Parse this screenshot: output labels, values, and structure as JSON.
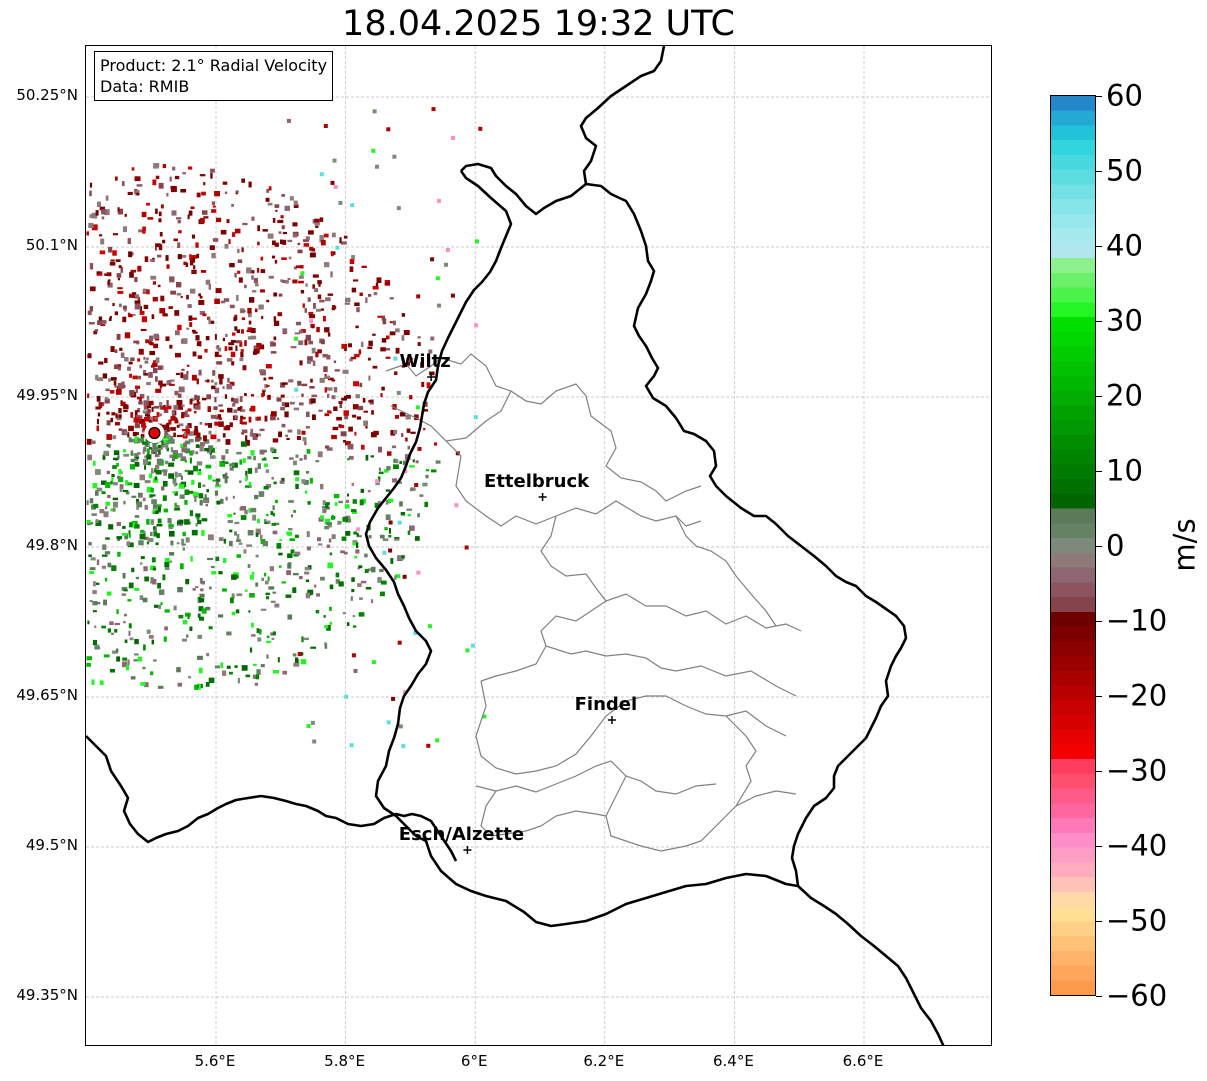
{
  "title": "18.04.2025 19:32 UTC",
  "info": {
    "product": "Product: 2.1° Radial Velocity",
    "data": "Data: RMIB"
  },
  "axes": {
    "lat_ticks": [
      "50.25°N",
      "50.1°N",
      "49.95°N",
      "49.8°N",
      "49.65°N",
      "49.5°N",
      "49.35°N"
    ],
    "lon_ticks": [
      "5.6°E",
      "5.8°E",
      "6°E",
      "6.2°E",
      "6.4°E",
      "6.6°E"
    ]
  },
  "cities": [
    {
      "name": "Wiltz",
      "lat": 49.97,
      "lon": 5.932
    },
    {
      "name": "Ettelbruck",
      "lat": 49.85,
      "lon": 6.104
    },
    {
      "name": "Findel",
      "lat": 49.627,
      "lon": 6.211
    },
    {
      "name": "Esch/Alzette",
      "lat": 49.497,
      "lon": 5.988
    }
  ],
  "radar": {
    "name": "",
    "lat": 49.914,
    "lon": 5.505
  },
  "colorbar": {
    "unit": "m/s",
    "min": -60,
    "max": 60,
    "ticks": [
      "60",
      "50",
      "40",
      "30",
      "20",
      "10",
      "0",
      "−10",
      "−20",
      "−30",
      "−40",
      "−50",
      "−60"
    ],
    "colors": [
      "#ff9a4a",
      "#ffa55c",
      "#ffb46a",
      "#ffc277",
      "#ffd087",
      "#ffe096",
      "#ffd9a8",
      "#ffc3b6",
      "#ffadbe",
      "#ff9ec4",
      "#ff8ec9",
      "#ff79b8",
      "#ff669f",
      "#ff5a87",
      "#ff4f6f",
      "#ff3e5f",
      "#f50000",
      "#e60000",
      "#d70000",
      "#c80000",
      "#b90000",
      "#aa0000",
      "#9b0000",
      "#8c0000",
      "#7d0000",
      "#6e0000",
      "#85434b",
      "#8c545e",
      "#8d6672",
      "#8d7a79",
      "#7b8a7a",
      "#668266",
      "#5a7a5a",
      "#006400",
      "#007000",
      "#007a00",
      "#008400",
      "#008e00",
      "#009800",
      "#00a200",
      "#00ad00",
      "#00b700",
      "#00c200",
      "#00cc00",
      "#00d600",
      "#00e000",
      "#24f524",
      "#4af54a",
      "#6af06a",
      "#8cf08c",
      "#b0e6ee",
      "#a6eaf0",
      "#96e8ec",
      "#86e5e9",
      "#72e2e6",
      "#5cdde2",
      "#48d9df",
      "#30d6dc",
      "#22c2d8",
      "#23a9d4",
      "#2487c9"
    ]
  }
}
